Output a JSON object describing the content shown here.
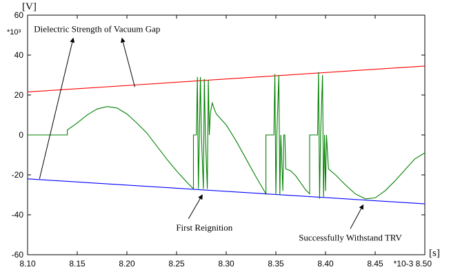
{
  "chart_data": {
    "type": "line",
    "title": "",
    "xlabel": "[s]",
    "ylabel": "[V]",
    "x_multiplier": "*10-3",
    "y_multiplier": "*10³",
    "xlim": [
      8.1,
      8.5
    ],
    "ylim": [
      -60,
      60
    ],
    "x_ticks": [
      "8.10",
      "8.15",
      "8.20",
      "8.25",
      "8.30",
      "8.35",
      "8.40",
      "8.45",
      "*10-3 8.50"
    ],
    "x_tick_values": [
      8.1,
      8.15,
      8.2,
      8.25,
      8.3,
      8.35,
      8.4,
      8.45,
      8.5
    ],
    "y_ticks": [
      "60",
      "40",
      "20",
      "0",
      "-20",
      "-40",
      "-60"
    ],
    "y_tick_values": [
      60,
      40,
      20,
      0,
      -20,
      -40,
      -60
    ],
    "grid": false,
    "series": [
      {
        "color": "#ff0000",
        "points": [
          [
            8.1,
            21.5
          ],
          [
            8.5,
            34.5
          ]
        ]
      },
      {
        "color": "#0000ff",
        "points": [
          [
            8.1,
            -22.0
          ],
          [
            8.5,
            -34.5
          ]
        ]
      },
      {
        "color": "#008000",
        "points": [
          [
            8.1,
            0
          ],
          [
            8.14,
            0
          ],
          [
            8.14,
            2.5
          ],
          [
            8.15,
            6
          ],
          [
            8.16,
            10
          ],
          [
            8.17,
            13
          ],
          [
            8.18,
            14.2
          ],
          [
            8.19,
            13.5
          ],
          [
            8.2,
            10.5
          ],
          [
            8.21,
            6
          ],
          [
            8.22,
            1
          ],
          [
            8.23,
            -5.5
          ],
          [
            8.24,
            -12
          ],
          [
            8.25,
            -18
          ],
          [
            8.26,
            -23.5
          ],
          [
            8.267,
            -27
          ],
          [
            8.267,
            0
          ],
          [
            8.27,
            0
          ],
          [
            8.271,
            29
          ],
          [
            8.272,
            -27
          ],
          [
            8.274,
            29
          ],
          [
            8.275,
            0
          ],
          [
            8.277,
            -27
          ],
          [
            8.278,
            28
          ],
          [
            8.279,
            0
          ],
          [
            8.281,
            -27
          ],
          [
            8.282,
            27.5
          ],
          [
            8.283,
            0
          ],
          [
            8.284,
            11
          ],
          [
            8.286,
            16
          ],
          [
            8.288,
            13
          ],
          [
            8.29,
            10.5
          ],
          [
            8.3,
            5
          ],
          [
            8.31,
            -3
          ],
          [
            8.32,
            -12
          ],
          [
            8.33,
            -21
          ],
          [
            8.34,
            -29.5
          ],
          [
            8.34,
            0
          ],
          [
            8.348,
            0
          ],
          [
            8.349,
            30.5
          ],
          [
            8.35,
            -30
          ],
          [
            8.351,
            0
          ],
          [
            8.353,
            30
          ],
          [
            8.354,
            -30
          ],
          [
            8.355,
            0
          ],
          [
            8.357,
            -28
          ],
          [
            8.358,
            0
          ],
          [
            8.359,
            0
          ],
          [
            8.36,
            -17
          ],
          [
            8.365,
            -18
          ],
          [
            8.37,
            -20.5
          ],
          [
            8.38,
            -27.5
          ],
          [
            8.384,
            -29.5
          ],
          [
            8.384,
            0
          ],
          [
            8.392,
            0
          ],
          [
            8.393,
            31.5
          ],
          [
            8.394,
            -32
          ],
          [
            8.395,
            0
          ],
          [
            8.397,
            30
          ],
          [
            8.398,
            -31
          ],
          [
            8.399,
            0
          ],
          [
            8.4,
            -28
          ],
          [
            8.401,
            0
          ],
          [
            8.403,
            -17
          ],
          [
            8.41,
            -20
          ],
          [
            8.42,
            -25
          ],
          [
            8.43,
            -29.5
          ],
          [
            8.44,
            -32
          ],
          [
            8.45,
            -31.5
          ],
          [
            8.46,
            -28
          ],
          [
            8.47,
            -23
          ],
          [
            8.48,
            -17.5
          ],
          [
            8.49,
            -12
          ],
          [
            8.5,
            -9
          ]
        ]
      }
    ],
    "annotations": [
      {
        "text": "Dielectric Strength of Vacuum Gap",
        "x": 8.17,
        "y": 51.5
      },
      {
        "text": "First Reignition",
        "x": 8.278,
        "y": -48
      },
      {
        "text": "Successfully Withstand TRV",
        "x": 8.425,
        "y": -53
      }
    ]
  }
}
